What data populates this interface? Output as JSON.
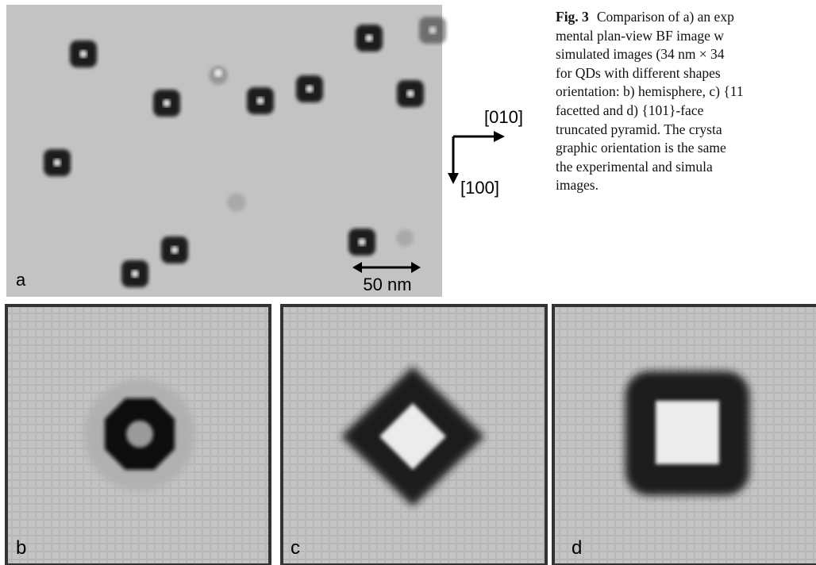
{
  "figure": {
    "panels": {
      "a": "a",
      "b": "b",
      "c": "c",
      "d": "d"
    },
    "scale_bar": "50 nm",
    "directions": {
      "horizontal": "[010]",
      "vertical": "[100]"
    },
    "caption": {
      "label": "Fig. 3",
      "lines": [
        "Comparison of a) an exp",
        "mental plan-view BF image w",
        "simulated images (34 nm × 34",
        "for QDs with different shapes",
        "orientation: b) hemisphere, c) {11",
        "facetted and d) {101}-face",
        "truncated pyramid. The crysta",
        "graphic orientation is the same",
        "the experimental and simula",
        "images."
      ]
    }
  }
}
